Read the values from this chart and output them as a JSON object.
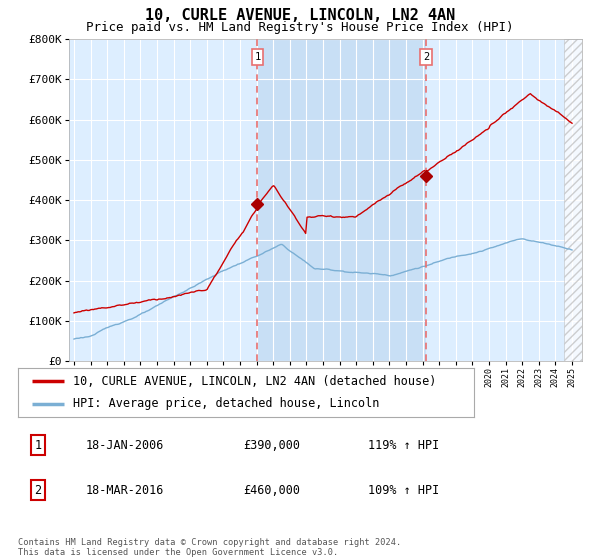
{
  "title": "10, CURLE AVENUE, LINCOLN, LN2 4AN",
  "subtitle": "Price paid vs. HM Land Registry's House Price Index (HPI)",
  "ylim": [
    0,
    800000
  ],
  "yticks": [
    0,
    100000,
    200000,
    300000,
    400000,
    500000,
    600000,
    700000,
    800000
  ],
  "ytick_labels": [
    "£0",
    "£100K",
    "£200K",
    "£300K",
    "£400K",
    "£500K",
    "£600K",
    "£700K",
    "£800K"
  ],
  "sale1_date": 2006.05,
  "sale1_price": 390000,
  "sale1_label": "1",
  "sale2_date": 2016.21,
  "sale2_price": 460000,
  "sale2_label": "2",
  "line_color_red": "#cc0000",
  "line_color_blue": "#7bafd4",
  "vline_color": "#e87070",
  "background_color": "#ddeeff",
  "highlight_color": "#c8dff5",
  "hatch_color": "#cccccc",
  "legend1": "10, CURLE AVENUE, LINCOLN, LN2 4AN (detached house)",
  "legend2": "HPI: Average price, detached house, Lincoln",
  "table_row1": [
    "1",
    "18-JAN-2006",
    "£390,000",
    "119% ↑ HPI"
  ],
  "table_row2": [
    "2",
    "18-MAR-2016",
    "£460,000",
    "109% ↑ HPI"
  ],
  "footer": "Contains HM Land Registry data © Crown copyright and database right 2024.\nThis data is licensed under the Open Government Licence v3.0.",
  "xmin": 1995,
  "xmax": 2025,
  "hatch_start": 2024.5,
  "title_fontsize": 11,
  "subtitle_fontsize": 9,
  "axis_fontsize": 8,
  "legend_fontsize": 8.5
}
